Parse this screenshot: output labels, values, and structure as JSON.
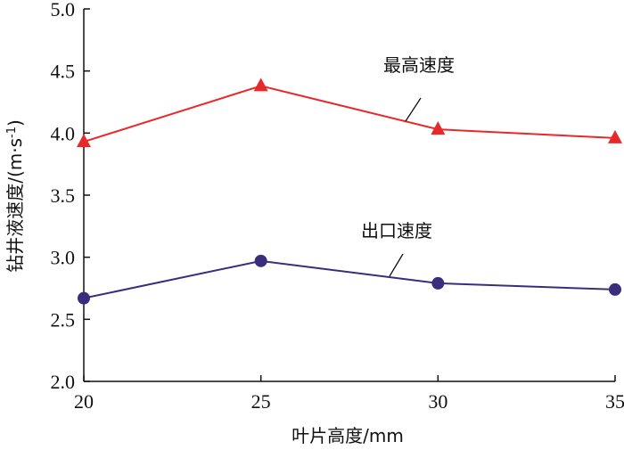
{
  "chart_data": {
    "type": "line",
    "x": [
      20,
      25,
      30,
      35
    ],
    "series": [
      {
        "name": "最高速度",
        "values": [
          3.93,
          4.38,
          4.03,
          3.96
        ],
        "color": "#e8292b",
        "marker": "triangle"
      },
      {
        "name": "出口速度",
        "values": [
          2.67,
          2.97,
          2.79,
          2.74
        ],
        "color": "#3a2d7e",
        "marker": "circle"
      }
    ],
    "xlabel": "叶片高度/mm",
    "ylabel": "钻井液速度/(m·s",
    "ylabel_sup": "-1",
    "ylabel_close": ")",
    "xlim": [
      20,
      35
    ],
    "ylim": [
      2.0,
      5.0
    ],
    "xticks": [
      "20",
      "25",
      "30",
      "35"
    ],
    "yticks": [
      "2.0",
      "2.5",
      "3.0",
      "3.5",
      "4.0",
      "4.5",
      "5.0"
    ],
    "grid": false,
    "legend": "inline-annotations"
  }
}
